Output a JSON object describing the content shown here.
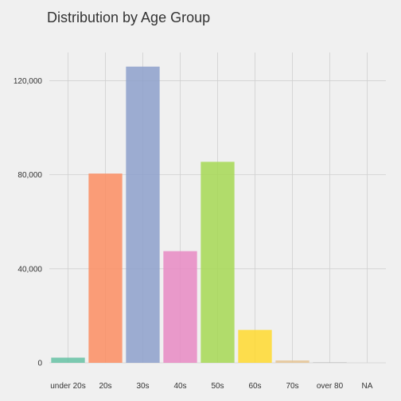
{
  "chart_data": {
    "type": "bar",
    "title": "Distribution by Age Group",
    "xlabel": "",
    "ylabel": "",
    "categories": [
      "under 20s",
      "20s",
      "30s",
      "40s",
      "50s",
      "60s",
      "70s",
      "over 80",
      "NA"
    ],
    "values": [
      2200,
      80500,
      126000,
      47500,
      85500,
      14000,
      1000,
      200,
      0
    ],
    "colors": [
      "#66c2a5",
      "#fc8d62",
      "#8da0cb",
      "#e78ac3",
      "#a6d854",
      "#ffd92f",
      "#e5c494",
      "#b3b3b3",
      "#b3b3b3"
    ],
    "ylim": [
      0,
      132000
    ],
    "yticks": [
      0,
      40000,
      80000,
      120000
    ],
    "ytick_labels": [
      "0",
      "40,000",
      "80,000",
      "120,000"
    ],
    "grid": true,
    "legend": "none",
    "background": "#f0f0f0",
    "gridline_color": "#d0d0d0"
  }
}
